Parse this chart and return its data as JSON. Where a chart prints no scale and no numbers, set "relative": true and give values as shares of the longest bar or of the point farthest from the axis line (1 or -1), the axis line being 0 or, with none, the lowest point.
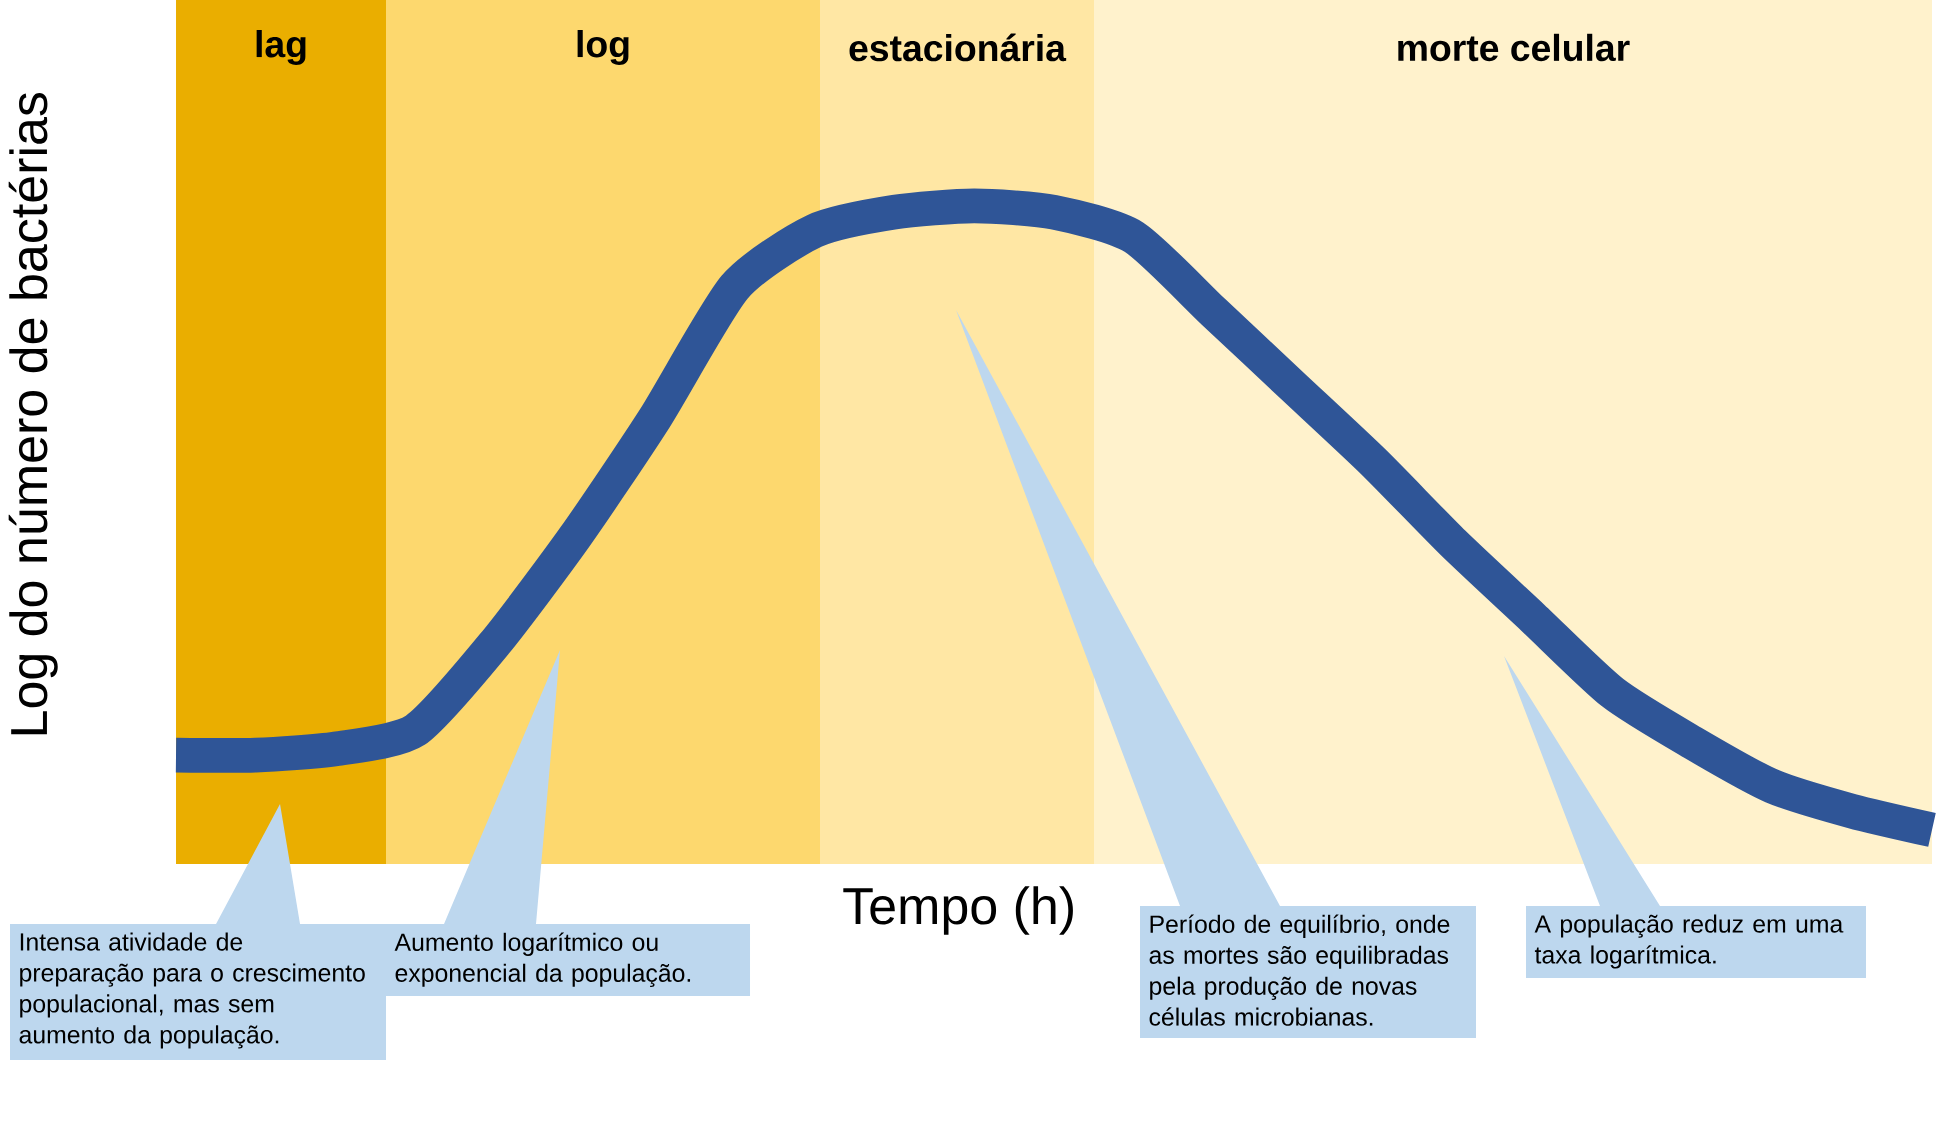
{
  "chart_data": {
    "type": "line",
    "relative": true,
    "xlabel": "Tempo (h)",
    "ylabel": "Log do número de bactérias",
    "categories": [
      null,
      null,
      null,
      null,
      null,
      null,
      null,
      null,
      null,
      null,
      null,
      null,
      null,
      null,
      null,
      null,
      null,
      null,
      null,
      null,
      null,
      null,
      null
    ],
    "series": [
      {
        "color": "#2f5597",
        "line_style": "solid",
        "values": [
          0.12,
          0.12,
          0.13,
          0.16,
          0.3,
          0.47,
          0.66,
          0.87,
          0.96,
          0.99,
          1,
          0.99,
          0.95,
          0.83,
          0.71,
          0.59,
          0.46,
          0.34,
          0.22,
          0.14,
          0.07,
          0.03,
          0
        ]
      }
    ],
    "annotations": [
      "lag",
      "log",
      "estacionária",
      "morte celular",
      "Intensa atividade de preparação para o crescimento populacional, mas sem aumento da população.",
      "Aumento logarítmico ou exponencial da população.",
      "Período de equilíbrio, onde as mortes são equilibradas pela produção de novas células microbianas.",
      "A população reduz em uma taxa logarítmica."
    ]
  }
}
